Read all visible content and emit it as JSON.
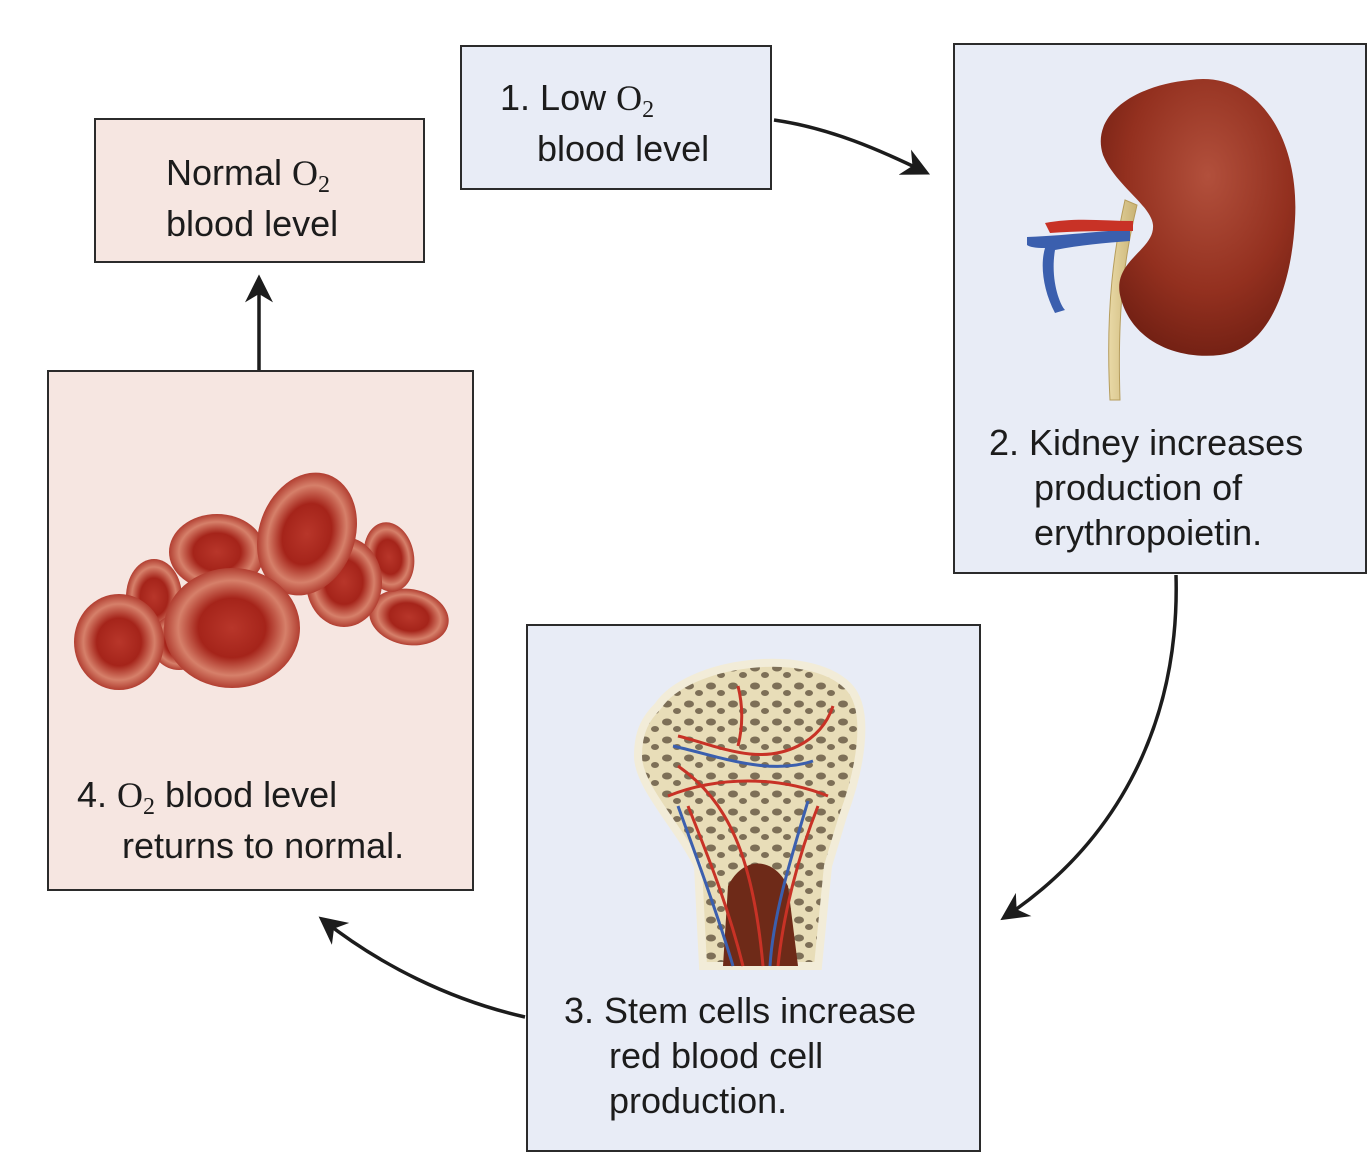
{
  "normal": {
    "line1_prefix": "Normal ",
    "o2": "O",
    "o2_sub": "2",
    "line2": "blood level"
  },
  "step1": {
    "number": "1.",
    "text_prefix": "Low ",
    "o2": "O",
    "o2_sub": "2",
    "line2": "blood level"
  },
  "step2": {
    "number": "2.",
    "line1": "Kidney increases",
    "line2": "production of",
    "line3": "erythropoietin."
  },
  "step3": {
    "number": "3.",
    "line1": "Stem cells increase",
    "line2": "red blood cell",
    "line3": "production."
  },
  "step4": {
    "number": "4.",
    "o2": "O",
    "o2_sub": "2",
    "line1_suffix": " blood level",
    "line2": "returns to normal."
  },
  "colors": {
    "pink_box": "#f6e6e1",
    "blue_box": "#e8ecf6",
    "blood_red": "#a8231a",
    "artery_red": "#c83226",
    "vein_blue": "#3b5fae"
  }
}
